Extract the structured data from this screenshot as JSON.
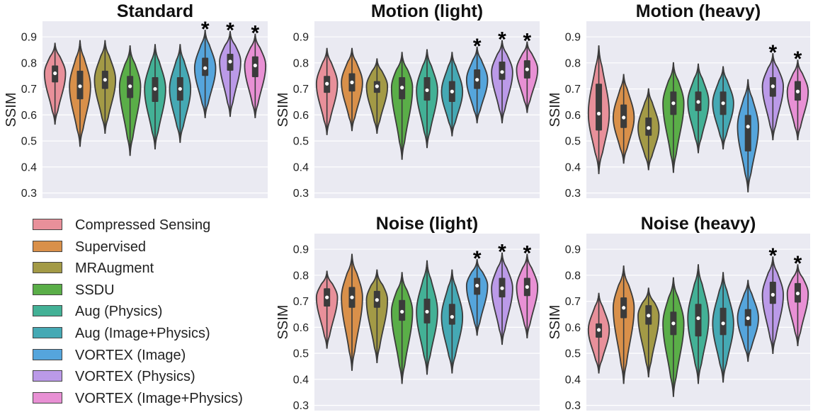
{
  "colors": [
    "#e8909a",
    "#d9904a",
    "#a39a46",
    "#5aae48",
    "#43b196",
    "#45a9b4",
    "#55a5dc",
    "#bb9ae8",
    "#e890d4"
  ],
  "chart_data": [
    {
      "type": "violin",
      "title": "Standard",
      "ylabel": "SSIM",
      "ylim": [
        0.28,
        0.96
      ],
      "yticks": [
        "0.3",
        "0.4",
        "0.5",
        "0.6",
        "0.7",
        "0.8",
        "0.9"
      ],
      "grid": true,
      "medians": [
        0.76,
        0.71,
        0.735,
        0.71,
        0.7,
        0.7,
        0.78,
        0.805,
        0.79
      ],
      "q1": [
        0.725,
        0.66,
        0.7,
        0.665,
        0.65,
        0.655,
        0.75,
        0.77,
        0.745
      ],
      "q3": [
        0.79,
        0.77,
        0.77,
        0.75,
        0.745,
        0.745,
        0.82,
        0.835,
        0.825
      ],
      "min": [
        0.565,
        0.48,
        0.53,
        0.445,
        0.47,
        0.495,
        0.59,
        0.595,
        0.59
      ],
      "max": [
        0.875,
        0.885,
        0.885,
        0.865,
        0.87,
        0.87,
        0.925,
        0.92,
        0.91
      ],
      "significant": [
        false,
        false,
        false,
        false,
        false,
        false,
        true,
        true,
        true
      ]
    },
    {
      "type": "violin",
      "title": "Motion (light)",
      "ylabel": "SSIM",
      "ylim": [
        0.28,
        0.96
      ],
      "yticks": [
        "0.3",
        "0.4",
        "0.5",
        "0.6",
        "0.7",
        "0.8",
        "0.9"
      ],
      "grid": true,
      "medians": [
        0.72,
        0.725,
        0.71,
        0.705,
        0.695,
        0.69,
        0.735,
        0.765,
        0.775
      ],
      "q1": [
        0.685,
        0.69,
        0.685,
        0.66,
        0.655,
        0.65,
        0.7,
        0.735,
        0.74
      ],
      "q3": [
        0.75,
        0.76,
        0.73,
        0.745,
        0.745,
        0.73,
        0.775,
        0.805,
        0.81
      ],
      "min": [
        0.525,
        0.54,
        0.53,
        0.43,
        0.475,
        0.52,
        0.57,
        0.57,
        0.61
      ],
      "max": [
        0.855,
        0.855,
        0.815,
        0.84,
        0.85,
        0.84,
        0.86,
        0.885,
        0.88
      ],
      "significant": [
        false,
        false,
        false,
        false,
        false,
        false,
        true,
        true,
        true
      ]
    },
    {
      "type": "violin",
      "title": "Motion (heavy)",
      "ylabel": "SSIM",
      "ylim": [
        0.28,
        0.96
      ],
      "yticks": [
        "0.3",
        "0.4",
        "0.5",
        "0.6",
        "0.7",
        "0.8",
        "0.9"
      ],
      "grid": true,
      "medians": [
        0.605,
        0.59,
        0.55,
        0.645,
        0.65,
        0.645,
        0.555,
        0.71,
        0.69
      ],
      "q1": [
        0.54,
        0.55,
        0.52,
        0.6,
        0.615,
        0.6,
        0.46,
        0.67,
        0.655
      ],
      "q3": [
        0.72,
        0.64,
        0.59,
        0.69,
        0.69,
        0.69,
        0.6,
        0.745,
        0.73
      ],
      "min": [
        0.375,
        0.415,
        0.39,
        0.38,
        0.455,
        0.47,
        0.305,
        0.505,
        0.505
      ],
      "max": [
        0.865,
        0.755,
        0.7,
        0.8,
        0.795,
        0.785,
        0.735,
        0.835,
        0.81
      ],
      "significant": [
        false,
        false,
        false,
        false,
        false,
        false,
        false,
        true,
        true
      ]
    },
    {
      "type": "violin",
      "title": "Noise (light)",
      "ylabel": "SSIM",
      "ylim": [
        0.28,
        0.96
      ],
      "yticks": [
        "0.3",
        "0.4",
        "0.5",
        "0.6",
        "0.7",
        "0.8",
        "0.9"
      ],
      "grid": true,
      "medians": [
        0.715,
        0.715,
        0.705,
        0.66,
        0.66,
        0.64,
        0.76,
        0.75,
        0.755
      ],
      "q1": [
        0.68,
        0.675,
        0.675,
        0.625,
        0.615,
        0.61,
        0.725,
        0.715,
        0.72
      ],
      "q3": [
        0.75,
        0.755,
        0.74,
        0.705,
        0.71,
        0.69,
        0.79,
        0.79,
        0.79
      ],
      "min": [
        0.52,
        0.435,
        0.465,
        0.385,
        0.42,
        0.425,
        0.57,
        0.535,
        0.56
      ],
      "max": [
        0.815,
        0.88,
        0.82,
        0.81,
        0.855,
        0.82,
        0.86,
        0.885,
        0.88
      ],
      "significant": [
        false,
        false,
        false,
        false,
        false,
        false,
        true,
        true,
        true
      ]
    },
    {
      "type": "violin",
      "title": "Noise (heavy)",
      "ylabel": "SSIM",
      "ylim": [
        0.28,
        0.96
      ],
      "yticks": [
        "0.3",
        "0.4",
        "0.5",
        "0.6",
        "0.7",
        "0.8",
        "0.9"
      ],
      "grid": true,
      "medians": [
        0.59,
        0.675,
        0.645,
        0.615,
        0.635,
        0.615,
        0.635,
        0.725,
        0.73
      ],
      "q1": [
        0.56,
        0.635,
        0.61,
        0.57,
        0.565,
        0.57,
        0.605,
        0.69,
        0.695
      ],
      "q3": [
        0.615,
        0.715,
        0.685,
        0.66,
        0.69,
        0.675,
        0.67,
        0.775,
        0.77
      ],
      "min": [
        0.425,
        0.385,
        0.41,
        0.335,
        0.385,
        0.39,
        0.47,
        0.5,
        0.53
      ],
      "max": [
        0.73,
        0.835,
        0.75,
        0.79,
        0.84,
        0.81,
        0.78,
        0.87,
        0.84
      ],
      "significant": [
        false,
        false,
        false,
        false,
        false,
        false,
        false,
        true,
        true
      ]
    }
  ],
  "legend": {
    "star_symbol": "*",
    "items": [
      "Compressed Sensing",
      "Supervised",
      "MRAugment",
      "SSDU",
      "Aug (Physics)",
      "Aug (Image+Physics)",
      "VORTEX (Image)",
      "VORTEX (Physics)",
      "VORTEX (Image+Physics)"
    ]
  }
}
